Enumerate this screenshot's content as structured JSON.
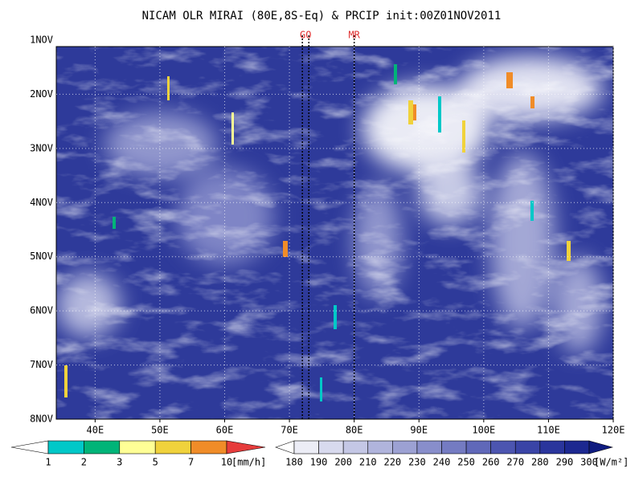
{
  "chart_data": {
    "type": "hovmoller",
    "title": "NICAM OLR MIRAI (80E,8S-Eq) & PRCIP init:00Z01NOV2011",
    "xlim": [
      34,
      120
    ],
    "xticks": [
      {
        "value": 40,
        "label": "40E"
      },
      {
        "value": 50,
        "label": "50E"
      },
      {
        "value": 60,
        "label": "60E"
      },
      {
        "value": 70,
        "label": "70E"
      },
      {
        "value": 80,
        "label": "80E"
      },
      {
        "value": 90,
        "label": "90E"
      },
      {
        "value": 100,
        "label": "100E"
      },
      {
        "value": 110,
        "label": "110E"
      },
      {
        "value": 120,
        "label": "120E"
      }
    ],
    "y_categories": [
      "1NOV",
      "2NOV",
      "3NOV",
      "4NOV",
      "5NOV",
      "6NOV",
      "7NOV",
      "8NOV"
    ],
    "grid": true,
    "markers": [
      {
        "label": "GO",
        "x": [
          72,
          73
        ],
        "color": "#e03030"
      },
      {
        "label": "MR",
        "x": [
          80
        ],
        "color": "#e03030"
      }
    ],
    "colorbars": [
      {
        "levels": [
          1,
          2,
          3,
          5,
          7,
          10
        ],
        "unit": "[mm/h]",
        "colors": [
          "#ffffff",
          "#00c8c8",
          "#00b478",
          "#ffff96",
          "#f0d23c",
          "#f08c28",
          "#e63c3c"
        ]
      },
      {
        "levels": [
          180,
          190,
          200,
          210,
          220,
          230,
          240,
          250,
          260,
          270,
          280,
          290,
          300
        ],
        "unit": "[W/m²]",
        "colors": [
          "#ffffff",
          "#ecedf6",
          "#d8daee",
          "#c4c7e5",
          "#b0b4dc",
          "#9ca1d3",
          "#888ecb",
          "#747bc2",
          "#6068b9",
          "#4c55b0",
          "#3a44a6",
          "#2a359c",
          "#1c2890",
          "#101c80"
        ]
      }
    ]
  }
}
